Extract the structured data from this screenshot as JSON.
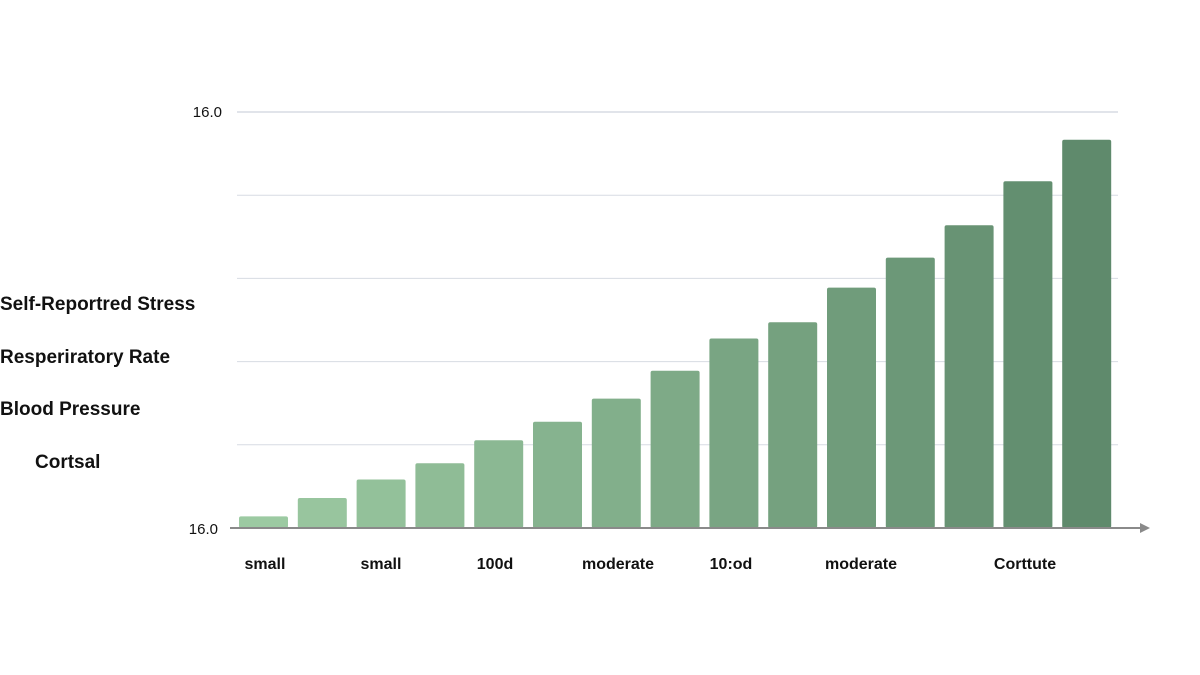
{
  "chart_data": {
    "type": "bar",
    "y_tick_labels": [
      "16.0",
      "16.0"
    ],
    "values": [
      0.5,
      1.3,
      2.1,
      2.8,
      3.8,
      4.6,
      5.6,
      6.8,
      8.2,
      8.9,
      10.4,
      11.7,
      13.1,
      15.0,
      16.8
    ],
    "ylim": [
      0,
      18
    ],
    "category_labels": [
      "small",
      "small",
      "100d",
      "moderate",
      "10:od",
      "moderate",
      "Corttute"
    ],
    "side_labels": [
      "Self-Reportred Stress",
      "Resperiratory Rate",
      "Blood Pressure",
      "Cortsal"
    ],
    "grid": true,
    "colors": {
      "bar_start": "#9ccaa2",
      "bar_end": "#5f8a6c",
      "grid": "#d7dbe3",
      "axis": "#8a8a8a",
      "text": "#111111"
    }
  }
}
